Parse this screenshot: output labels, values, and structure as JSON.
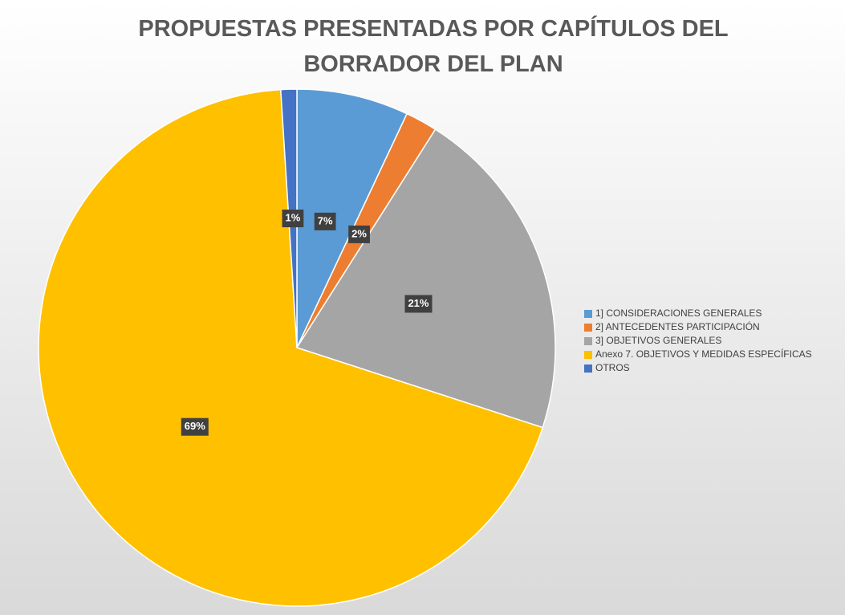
{
  "chart_data": {
    "type": "pie",
    "title": "PROPUESTAS PRESENTADAS POR CAPÍTULOS DEL BORRADOR DEL PLAN",
    "categories": [
      "1] CONSIDERACIONES GENERALES",
      "2] ANTECEDENTES PARTICIPACIÓN",
      "3] OBJETIVOS GENERALES",
      "Anexo 7. OBJETIVOS Y MEDIDAS ESPECÍFICAS",
      "OTROS"
    ],
    "values": [
      7,
      2,
      21,
      69,
      1
    ],
    "value_labels": [
      "7%",
      "2%",
      "21%",
      "69%",
      "1%"
    ],
    "colors": [
      "#5b9bd5",
      "#ed7d31",
      "#a5a5a5",
      "#ffc000",
      "#4472c4"
    ],
    "legend": "right"
  }
}
